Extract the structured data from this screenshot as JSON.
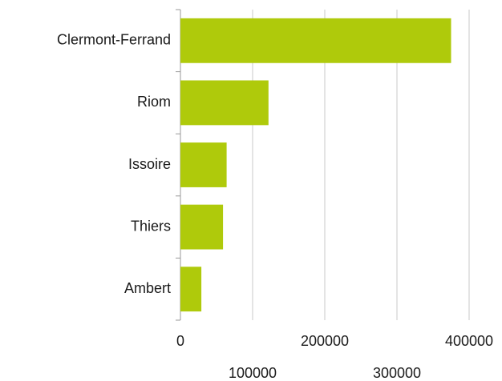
{
  "chart_data": {
    "type": "hbar",
    "categories": [
      "Clermont-Ferrand",
      "Riom",
      "Issoire",
      "Thiers",
      "Ambert"
    ],
    "values": [
      375000,
      122000,
      64000,
      59000,
      29000
    ],
    "color": "#afca0b",
    "xlim": [
      0,
      400000
    ],
    "xticks": [
      0,
      100000,
      200000,
      300000,
      400000
    ],
    "grid": true
  }
}
